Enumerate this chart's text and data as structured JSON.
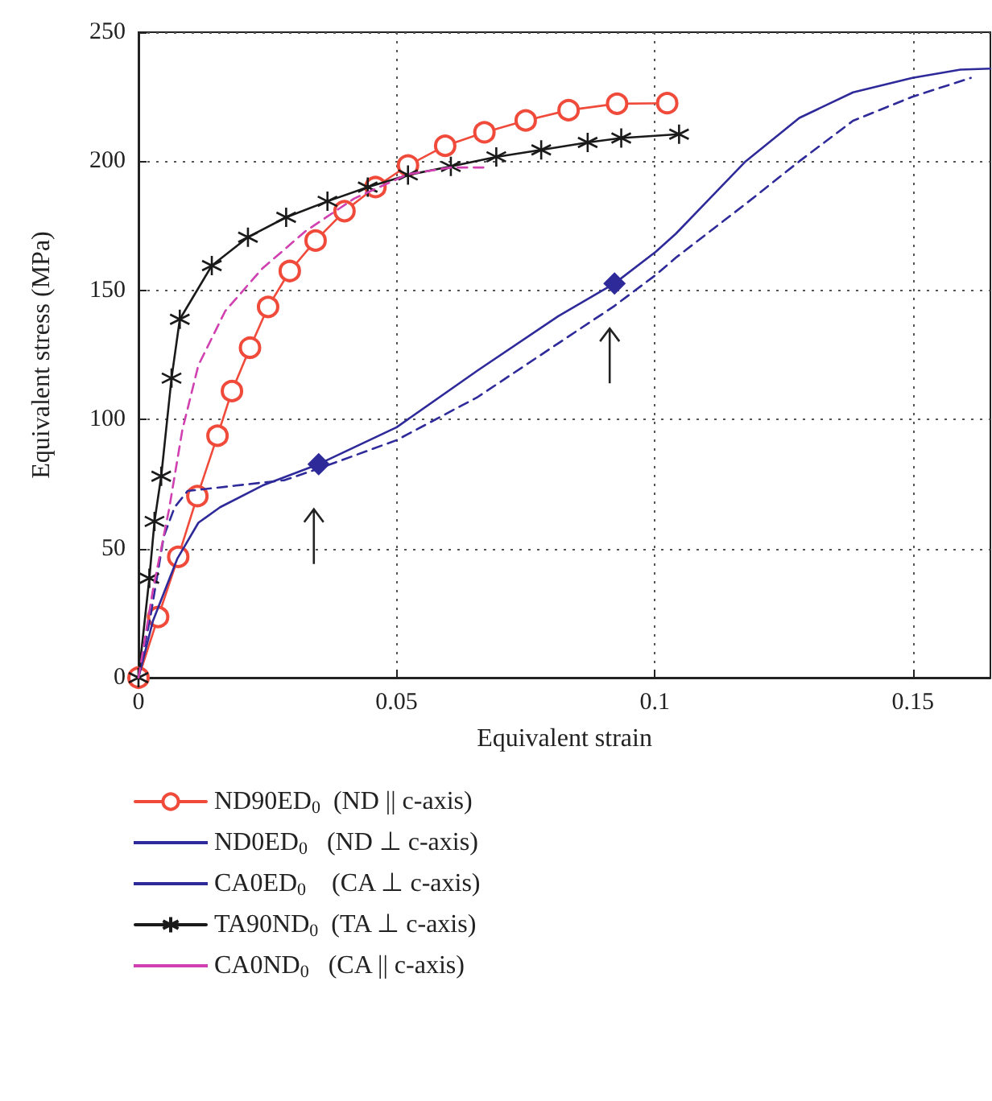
{
  "chart_data": {
    "type": "line",
    "xlabel": "Equivalent strain",
    "ylabel": "Equivalent stress (MPa)",
    "xlim": [
      0,
      0.165
    ],
    "xticks": [
      0,
      0.05,
      0.1,
      0.15
    ],
    "ylim": [
      0,
      250
    ],
    "yticks": [
      0,
      50,
      100,
      150,
      200,
      250
    ],
    "grid": true,
    "legend": "bottom",
    "series": [
      {
        "name": "ND90ED$_{0}$  (ND || c-axis)",
        "color": "#f04a3a",
        "marker": "circle",
        "line_style": "solid",
        "x": [
          0,
          0.0038,
          0.0077,
          0.0114,
          0.0153,
          0.0181,
          0.0216,
          0.0251,
          0.0293,
          0.0343,
          0.0399,
          0.0459,
          0.0522,
          0.0594,
          0.067,
          0.075,
          0.0833,
          0.0927,
          0.1024
        ],
        "values": [
          0,
          23.5,
          46.8,
          70.3,
          93.7,
          111,
          127.8,
          143.6,
          157.5,
          169.3,
          180.7,
          190,
          198.4,
          206,
          211.2,
          215.8,
          219.8,
          222.3,
          222.5
        ]
      },
      {
        "name": "ND0ED$_{0}$   (ND ⊥ c-axis)",
        "color": "#2e2a9a",
        "marker": "none",
        "line_style": "solid",
        "x": [
          0,
          0.0028,
          0.0075,
          0.0116,
          0.0158,
          0.024,
          0.0349,
          0.05,
          0.0657,
          0.0813,
          0.0922,
          0.1002,
          0.1041,
          0.1176,
          0.128,
          0.1384,
          0.1499,
          0.1592,
          0.165
        ],
        "values": [
          0,
          22,
          46,
          60,
          66,
          74.4,
          82.7,
          97,
          119,
          140,
          152.7,
          165,
          172,
          200,
          216.8,
          226.7,
          232.3,
          235.5,
          235.9
        ]
      },
      {
        "name": "CA0ED$_{0}$    (CA ⊥ c-axis)",
        "color": "#2e2a9a",
        "marker": "none",
        "line_style": "dashed",
        "x": [
          0,
          0.0023,
          0.0049,
          0.007,
          0.0095,
          0.0189,
          0.0283,
          0.0349,
          0.05,
          0.0657,
          0.0813,
          0.0922,
          0.1002,
          0.1041,
          0.1176,
          0.128,
          0.1384,
          0.1499,
          0.1612
        ],
        "values": [
          0,
          23.5,
          54.7,
          66,
          72.3,
          74.4,
          76.5,
          81,
          92,
          108.7,
          129.5,
          144,
          156,
          162.7,
          183.5,
          200,
          215.7,
          225,
          232.3
        ]
      },
      {
        "name": "TA90ND$_{0}$  (TA ⊥ c-axis)",
        "color": "#1a1a1a",
        "marker": "cross",
        "line_style": "solid",
        "x": [
          0,
          0.0021,
          0.0031,
          0.0044,
          0.0064,
          0.008,
          0.0142,
          0.0212,
          0.0286,
          0.0366,
          0.0444,
          0.0522,
          0.0605,
          0.0693,
          0.078,
          0.087,
          0.0935,
          0.1047
        ],
        "values": [
          0,
          38.5,
          60.5,
          78,
          116,
          138.8,
          159.6,
          170.6,
          178.3,
          184.5,
          190,
          194.7,
          198,
          201.7,
          204.4,
          207.3,
          209,
          210.5
        ]
      },
      {
        "name": "CA0ND$_{0}$   (CA || c-axis)",
        "color": "#d040b0",
        "marker": "none",
        "line_style": "dashed",
        "x": [
          0,
          0.0028,
          0.0059,
          0.0085,
          0.0116,
          0.0168,
          0.024,
          0.0324,
          0.0418,
          0.0522,
          0.0605,
          0.0672
        ],
        "values": [
          0,
          34,
          65,
          96,
          121,
          142,
          158.5,
          173,
          185.6,
          195,
          197.6,
          197.6
        ]
      },
      {
        "type": "scatter",
        "color": "#2e2a9a",
        "marker": "diamond",
        "x": [
          0.0349,
          0.0922
        ],
        "values": [
          82.7,
          152.7
        ]
      }
    ]
  }
}
